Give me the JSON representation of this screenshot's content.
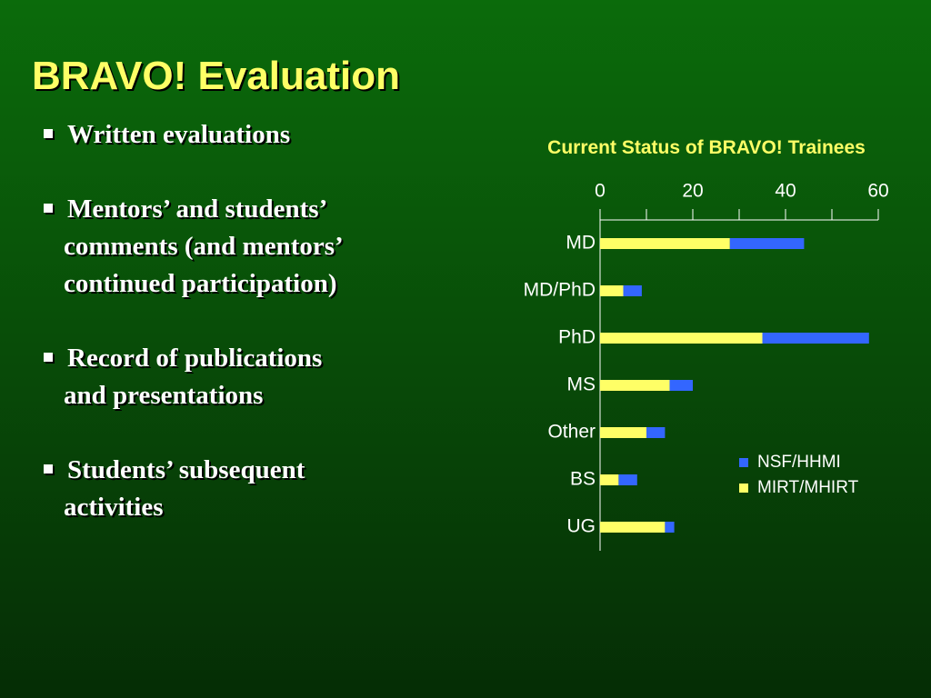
{
  "slide": {
    "title": "BRAVO! Evaluation",
    "bullets": [
      [
        "Written evaluations"
      ],
      [
        "Mentors’ and students’",
        "comments (and mentors’",
        "continued participation)"
      ],
      [
        "Record of publications",
        "and presentations"
      ],
      [
        "Students’ subsequent",
        "activities"
      ]
    ]
  },
  "chart_data": {
    "type": "stacked-bar-horizontal",
    "title": "Current Status of BRAVO! Trainees",
    "categories": [
      "MD",
      "MD/PhD",
      "PhD",
      "MS",
      "Other",
      "BS",
      "UG"
    ],
    "series": [
      {
        "name": "NSF/HHMI",
        "color": "#3366ff",
        "values": [
          16,
          4,
          23,
          5,
          4,
          4,
          2
        ]
      },
      {
        "name": "MIRT/MHIRT",
        "color": "#ffff66",
        "values": [
          28,
          5,
          35,
          15,
          10,
          4,
          14
        ]
      }
    ],
    "xlim": [
      0,
      60
    ],
    "xticks": [
      0,
      20,
      40,
      60
    ],
    "minor_xticks": [
      10,
      30,
      50
    ],
    "axis_position": "top",
    "legend": "lower right",
    "grid": false
  }
}
